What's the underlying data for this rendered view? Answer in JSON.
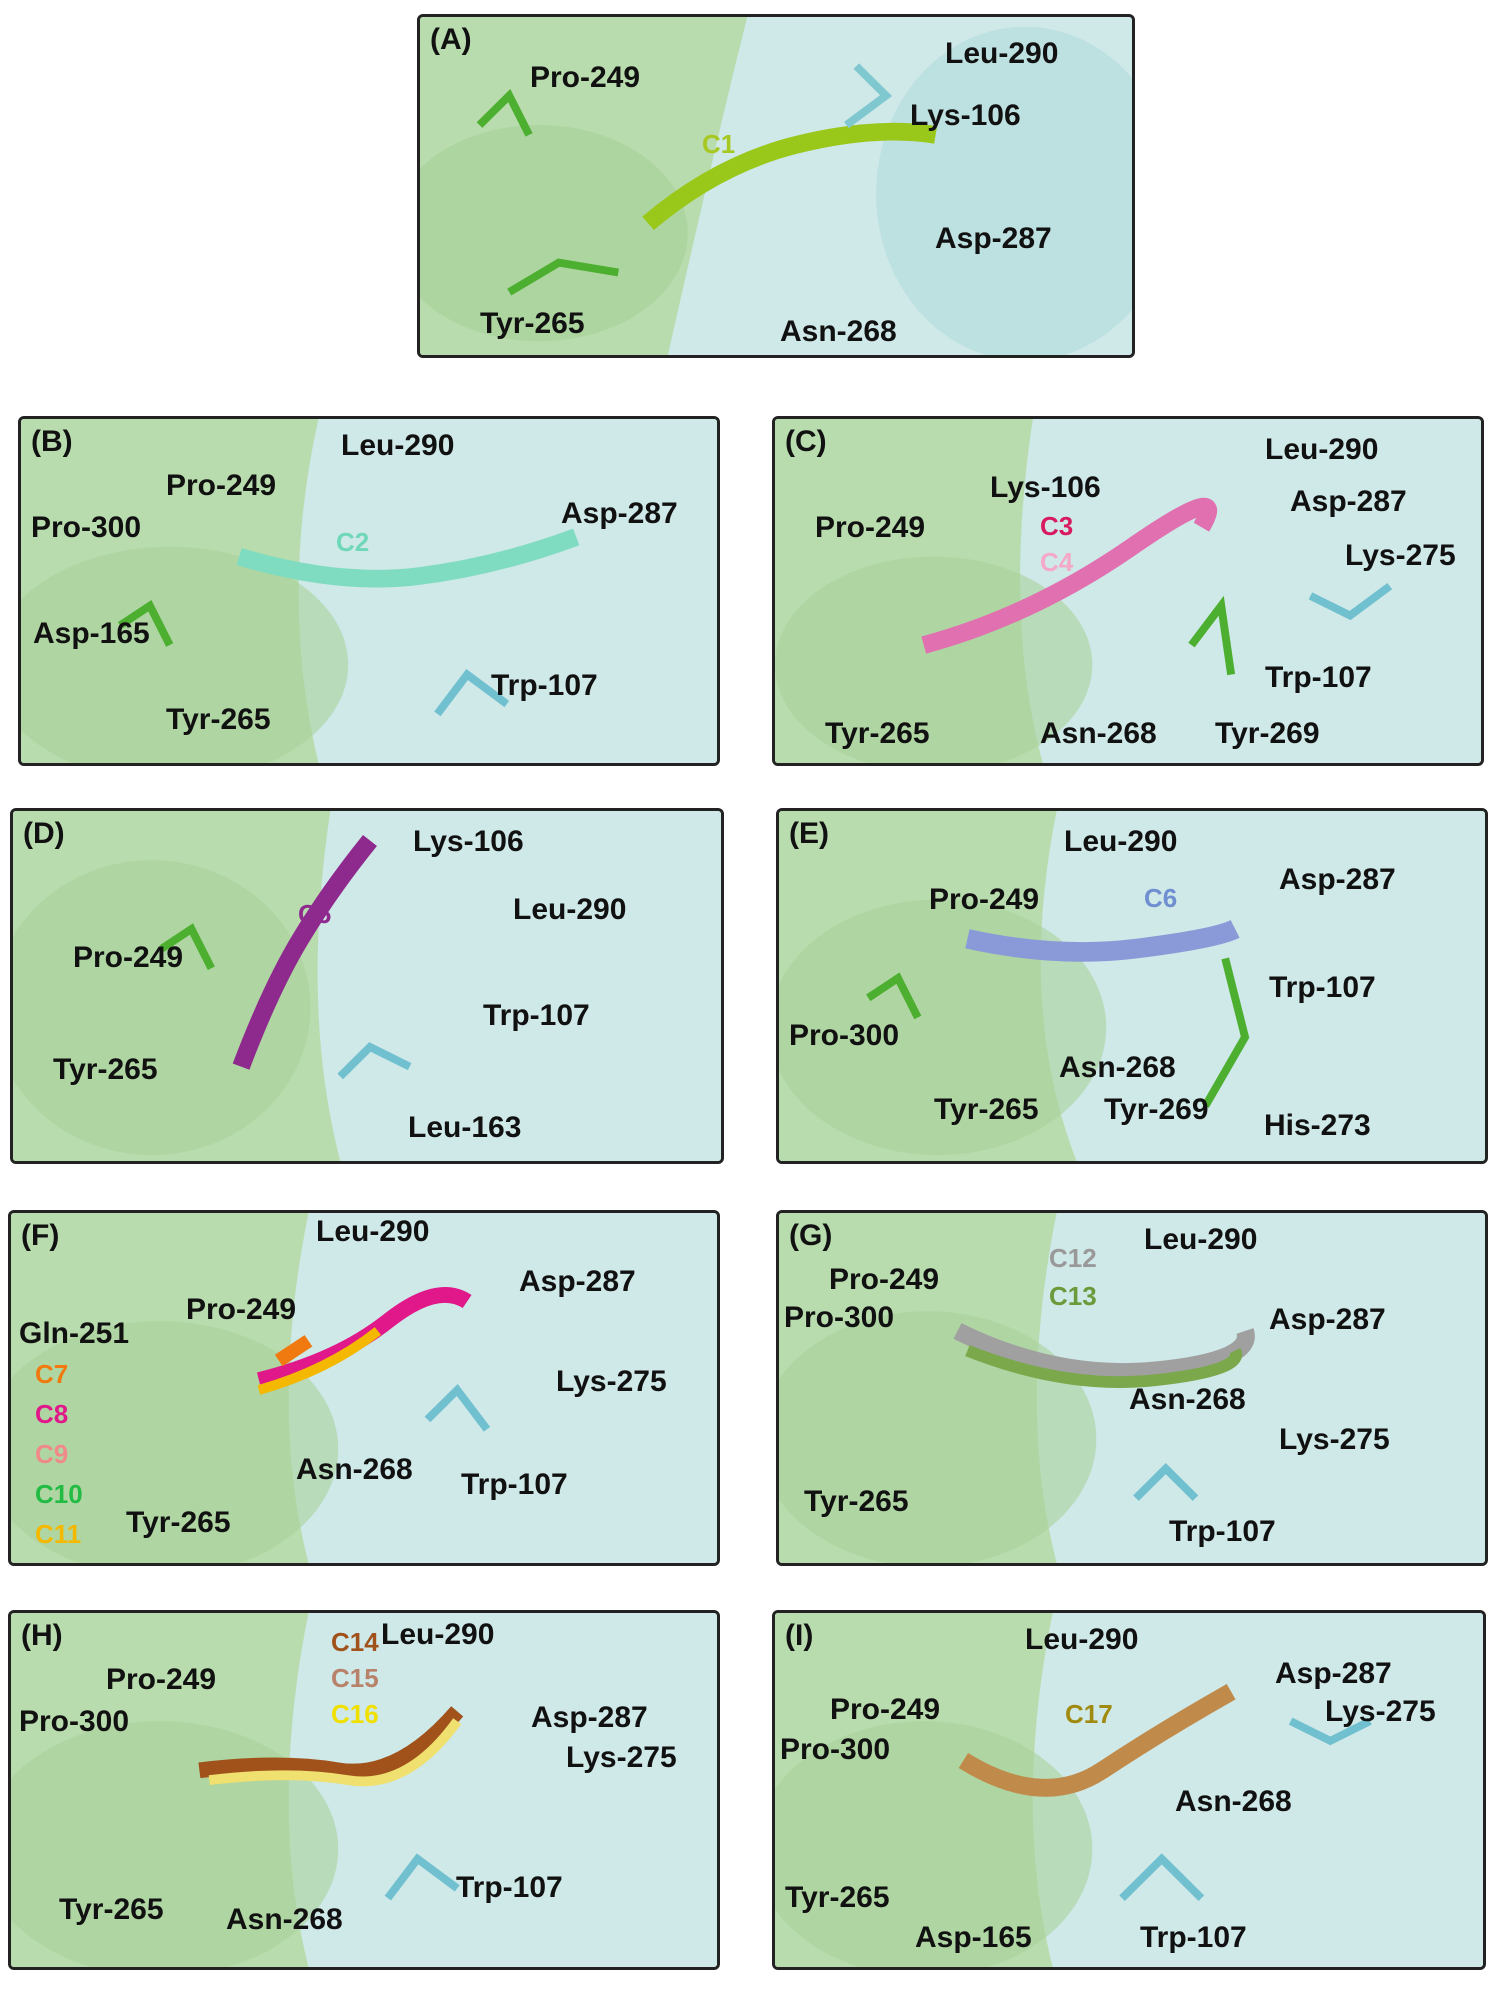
{
  "panels": [
    {
      "id": "A",
      "label": "(A)",
      "residues": [
        "Pro-249",
        "Leu-290",
        "Lys-106",
        "Asp-287",
        "Tyr-265",
        "Asn-268"
      ],
      "ligands": [
        {
          "name": "C1",
          "color": "#a6c820"
        }
      ]
    },
    {
      "id": "B",
      "label": "(B)",
      "residues": [
        "Leu-290",
        "Pro-249",
        "Asp-287",
        "Pro-300",
        "Asp-165",
        "Trp-107",
        "Tyr-265"
      ],
      "ligands": [
        {
          "name": "C2",
          "color": "#6fd8b8"
        }
      ]
    },
    {
      "id": "C",
      "label": "(C)",
      "residues": [
        "Leu-290",
        "Lys-106",
        "Asp-287",
        "Pro-249",
        "Lys-275",
        "Trp-107",
        "Tyr-265",
        "Asn-268",
        "Tyr-269"
      ],
      "ligands": [
        {
          "name": "C3",
          "color": "#d81b60"
        },
        {
          "name": "C4",
          "color": "#f5a8c8"
        }
      ]
    },
    {
      "id": "D",
      "label": "(D)",
      "residues": [
        "Lys-106",
        "Leu-290",
        "Pro-249",
        "Trp-107",
        "Tyr-265",
        "Leu-163"
      ],
      "ligands": [
        {
          "name": "C5",
          "color": "#8e2a8e"
        }
      ]
    },
    {
      "id": "E",
      "label": "(E)",
      "residues": [
        "Leu-290",
        "Asp-287",
        "Pro-249",
        "Trp-107",
        "Pro-300",
        "Asn-268",
        "Tyr-265",
        "Tyr-269",
        "His-273"
      ],
      "ligands": [
        {
          "name": "C6",
          "color": "#6f8fd0"
        }
      ]
    },
    {
      "id": "F",
      "label": "(F)",
      "residues": [
        "Leu-290",
        "Asp-287",
        "Pro-249",
        "Gln-251",
        "Lys-275",
        "Asn-268",
        "Trp-107",
        "Tyr-265"
      ],
      "ligands": [
        {
          "name": "C7",
          "color": "#f07a10"
        },
        {
          "name": "C8",
          "color": "#e0188a"
        },
        {
          "name": "C9",
          "color": "#f08a8a"
        },
        {
          "name": "C10",
          "color": "#22bb44"
        },
        {
          "name": "C11",
          "color": "#f5b800"
        }
      ]
    },
    {
      "id": "G",
      "label": "(G)",
      "residues": [
        "Leu-290",
        "Pro-249",
        "Pro-300",
        "Asp-287",
        "Asn-268",
        "Lys-275",
        "Tyr-265",
        "Trp-107"
      ],
      "ligands": [
        {
          "name": "C12",
          "color": "#999999"
        },
        {
          "name": "C13",
          "color": "#6a9a3a"
        }
      ]
    },
    {
      "id": "H",
      "label": "(H)",
      "residues": [
        "Leu-290",
        "Pro-249",
        "Asp-287",
        "Pro-300",
        "Lys-275",
        "Trp-107",
        "Tyr-265",
        "Asn-268"
      ],
      "ligands": [
        {
          "name": "C14",
          "color": "#a0521a"
        },
        {
          "name": "C15",
          "color": "#b8826a"
        },
        {
          "name": "C16",
          "color": "#f0e000"
        }
      ]
    },
    {
      "id": "I",
      "label": "(I)",
      "residues": [
        "Leu-290",
        "Asp-287",
        "Pro-249",
        "Lys-275",
        "Pro-300",
        "Asn-268",
        "Tyr-265",
        "Asp-165",
        "Trp-107"
      ],
      "ligands": [
        {
          "name": "C17",
          "color": "#a08a10"
        }
      ]
    }
  ]
}
